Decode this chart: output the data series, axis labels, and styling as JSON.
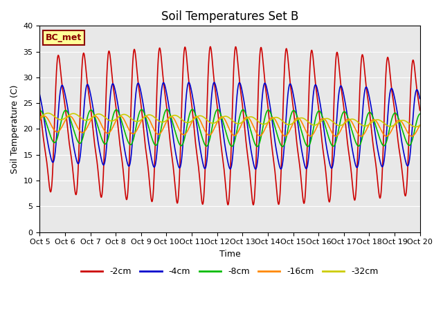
{
  "title": "Soil Temperatures Set B",
  "xlabel": "Time",
  "ylabel": "Soil Temperature (C)",
  "ylim": [
    0,
    40
  ],
  "yticks": [
    0,
    5,
    10,
    15,
    20,
    25,
    30,
    35,
    40
  ],
  "n_days": 15,
  "label_box_text": "BC_met",
  "bg_color": "#e8e8e8",
  "x_tick_labels": [
    "Oct 5",
    "Oct 6",
    "Oct 7",
    "Oct 8",
    "Oct 9",
    "Oct 10",
    "Oct 11",
    "Oct 12",
    "Oct 13",
    "Oct 14",
    "Oct 15",
    "Oct 16",
    "Oct 17",
    "Oct 18",
    "Oct 19",
    "Oct 20"
  ],
  "legend_labels": [
    "-2cm",
    "-4cm",
    "-8cm",
    "-16cm",
    "-32cm"
  ],
  "legend_colors": [
    "#cc0000",
    "#0000cc",
    "#00bb00",
    "#ff8800",
    "#cccc00"
  ],
  "title_fontsize": 12,
  "axis_label_fontsize": 9,
  "tick_fontsize": 8,
  "legend_fontsize": 9,
  "line_width": 1.2
}
